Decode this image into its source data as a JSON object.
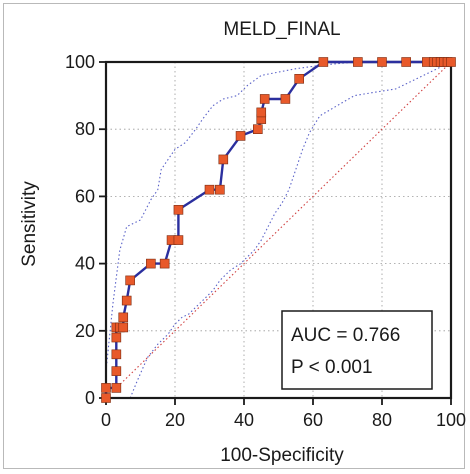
{
  "chart_data": {
    "type": "line",
    "title": "MELD_FINAL",
    "xlabel": "100-Specificity",
    "ylabel": "Sensitivity",
    "xlim": [
      0,
      100
    ],
    "ylim": [
      0,
      100
    ],
    "xticks": [
      0,
      20,
      40,
      60,
      80,
      100
    ],
    "yticks": [
      0,
      20,
      40,
      60,
      80,
      100
    ],
    "grid": true,
    "series": [
      {
        "role": "roc",
        "color": "#2b2f9e",
        "marker_color": "#e8592a",
        "points": [
          [
            0,
            0
          ],
          [
            0,
            3
          ],
          [
            3,
            3
          ],
          [
            3,
            8
          ],
          [
            3,
            13
          ],
          [
            3,
            18
          ],
          [
            3,
            21
          ],
          [
            4,
            21
          ],
          [
            5,
            21
          ],
          [
            5,
            24
          ],
          [
            6,
            29
          ],
          [
            7,
            35
          ],
          [
            13,
            40
          ],
          [
            17,
            40
          ],
          [
            19,
            47
          ],
          [
            21,
            47
          ],
          [
            21,
            56
          ],
          [
            30,
            62
          ],
          [
            33,
            62
          ],
          [
            34,
            71
          ],
          [
            39,
            78
          ],
          [
            44,
            80
          ],
          [
            45,
            83
          ],
          [
            45,
            85
          ],
          [
            46,
            89
          ],
          [
            52,
            89
          ],
          [
            56,
            95
          ],
          [
            63,
            100
          ],
          [
            73,
            100
          ],
          [
            80,
            100
          ],
          [
            87,
            100
          ],
          [
            93,
            100
          ],
          [
            95,
            100
          ],
          [
            96,
            100
          ],
          [
            97,
            100
          ],
          [
            98,
            100
          ],
          [
            99,
            100
          ],
          [
            100,
            100
          ]
        ]
      },
      {
        "role": "upper-confidence-bound",
        "color": "#5a62c8",
        "points": [
          [
            0,
            8
          ],
          [
            2,
            28
          ],
          [
            4,
            44
          ],
          [
            6,
            51
          ],
          [
            10,
            53
          ],
          [
            13,
            59
          ],
          [
            15,
            62
          ],
          [
            16,
            68
          ],
          [
            18,
            71
          ],
          [
            20,
            74
          ],
          [
            23,
            76
          ],
          [
            26,
            80
          ],
          [
            28,
            83
          ],
          [
            31,
            87
          ],
          [
            34,
            89
          ],
          [
            38,
            90
          ],
          [
            41,
            93
          ],
          [
            45,
            96
          ],
          [
            50,
            97
          ],
          [
            55,
            98
          ],
          [
            62,
            99
          ],
          [
            72,
            100
          ],
          [
            80,
            100
          ],
          [
            100,
            100
          ]
        ]
      },
      {
        "role": "lower-confidence-bound",
        "color": "#5a62c8",
        "points": [
          [
            7,
            0
          ],
          [
            9,
            5
          ],
          [
            12,
            12
          ],
          [
            15,
            16
          ],
          [
            18,
            19
          ],
          [
            20,
            22
          ],
          [
            22,
            24
          ],
          [
            24,
            25
          ],
          [
            27,
            28
          ],
          [
            29,
            30
          ],
          [
            31,
            32
          ],
          [
            33,
            35
          ],
          [
            36,
            38
          ],
          [
            39,
            40
          ],
          [
            41,
            42
          ],
          [
            43,
            44
          ],
          [
            45,
            47
          ],
          [
            47,
            51
          ],
          [
            49,
            55
          ],
          [
            51,
            58
          ],
          [
            53,
            62
          ],
          [
            55,
            68
          ],
          [
            57,
            74
          ],
          [
            59,
            79
          ],
          [
            62,
            84
          ],
          [
            67,
            87
          ],
          [
            72,
            90
          ],
          [
            78,
            91
          ],
          [
            84,
            92
          ],
          [
            100,
            100
          ]
        ]
      },
      {
        "role": "reference-diagonal",
        "color": "#d04040",
        "points": [
          [
            0,
            0
          ],
          [
            100,
            100
          ]
        ]
      }
    ],
    "annotations": {
      "auc": "AUC = 0.766",
      "p": "P < 0.001"
    }
  }
}
